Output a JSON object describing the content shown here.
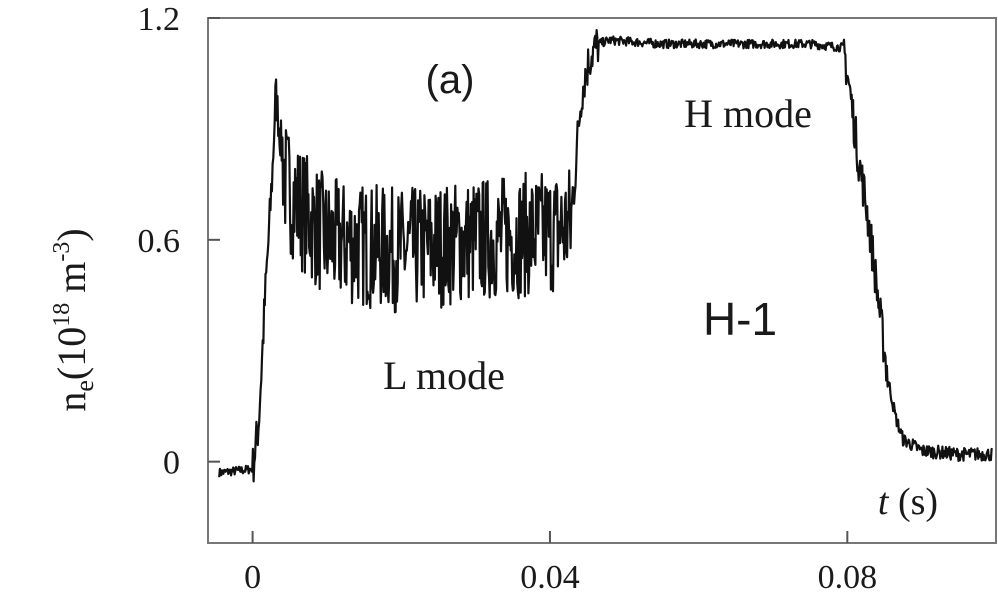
{
  "chart_data": {
    "type": "line",
    "panel_label": "(a)",
    "device_label": "H-1",
    "xlabel_italic": "t",
    "xlabel_unit": " (s)",
    "ylabel_main": "n",
    "ylabel_sub": "e",
    "ylabel_rest": "(10",
    "ylabel_exp1": "18",
    "ylabel_m": " m",
    "ylabel_exp2": "-3",
    "ylabel_close": ")",
    "xlim": [
      -0.006,
      0.1
    ],
    "ylim": [
      -0.22,
      1.2
    ],
    "xticks": [
      0,
      0.04,
      0.08
    ],
    "xtick_labels": [
      "0",
      "0.04",
      "0.08"
    ],
    "yticks": [
      0,
      0.6,
      1.2
    ],
    "ytick_labels": [
      "0",
      "0.6",
      "1.2"
    ],
    "annotations": {
      "l_mode": "L mode",
      "h_mode": "H mode"
    },
    "series": [
      {
        "x": [
          -0.0045,
          0,
          0.0008,
          0.0012,
          0.0017,
          0.0022,
          0.0027,
          0.0031,
          0.0036,
          0.0045,
          0.006,
          0.01,
          0.02,
          0.03,
          0.04,
          0.0428,
          0.0433,
          0.0438,
          0.0443,
          0.0448,
          0.0455,
          0.0465,
          0.048,
          0.055,
          0.065,
          0.075,
          0.0795,
          0.0805,
          0.0815,
          0.0825,
          0.0835,
          0.0845,
          0.0855,
          0.0865,
          0.0875,
          0.09,
          0.095,
          0.0995
        ],
        "y": [
          -0.03,
          -0.02,
          0.1,
          0.25,
          0.45,
          0.62,
          0.8,
          1.0,
          0.9,
          0.75,
          0.7,
          0.6,
          0.57,
          0.6,
          0.62,
          0.64,
          0.75,
          0.9,
          1.0,
          1.05,
          1.1,
          1.13,
          1.14,
          1.13,
          1.13,
          1.13,
          1.12,
          0.98,
          0.82,
          0.7,
          0.55,
          0.38,
          0.22,
          0.12,
          0.06,
          0.03,
          0.02,
          0.02
        ]
      }
    ]
  }
}
